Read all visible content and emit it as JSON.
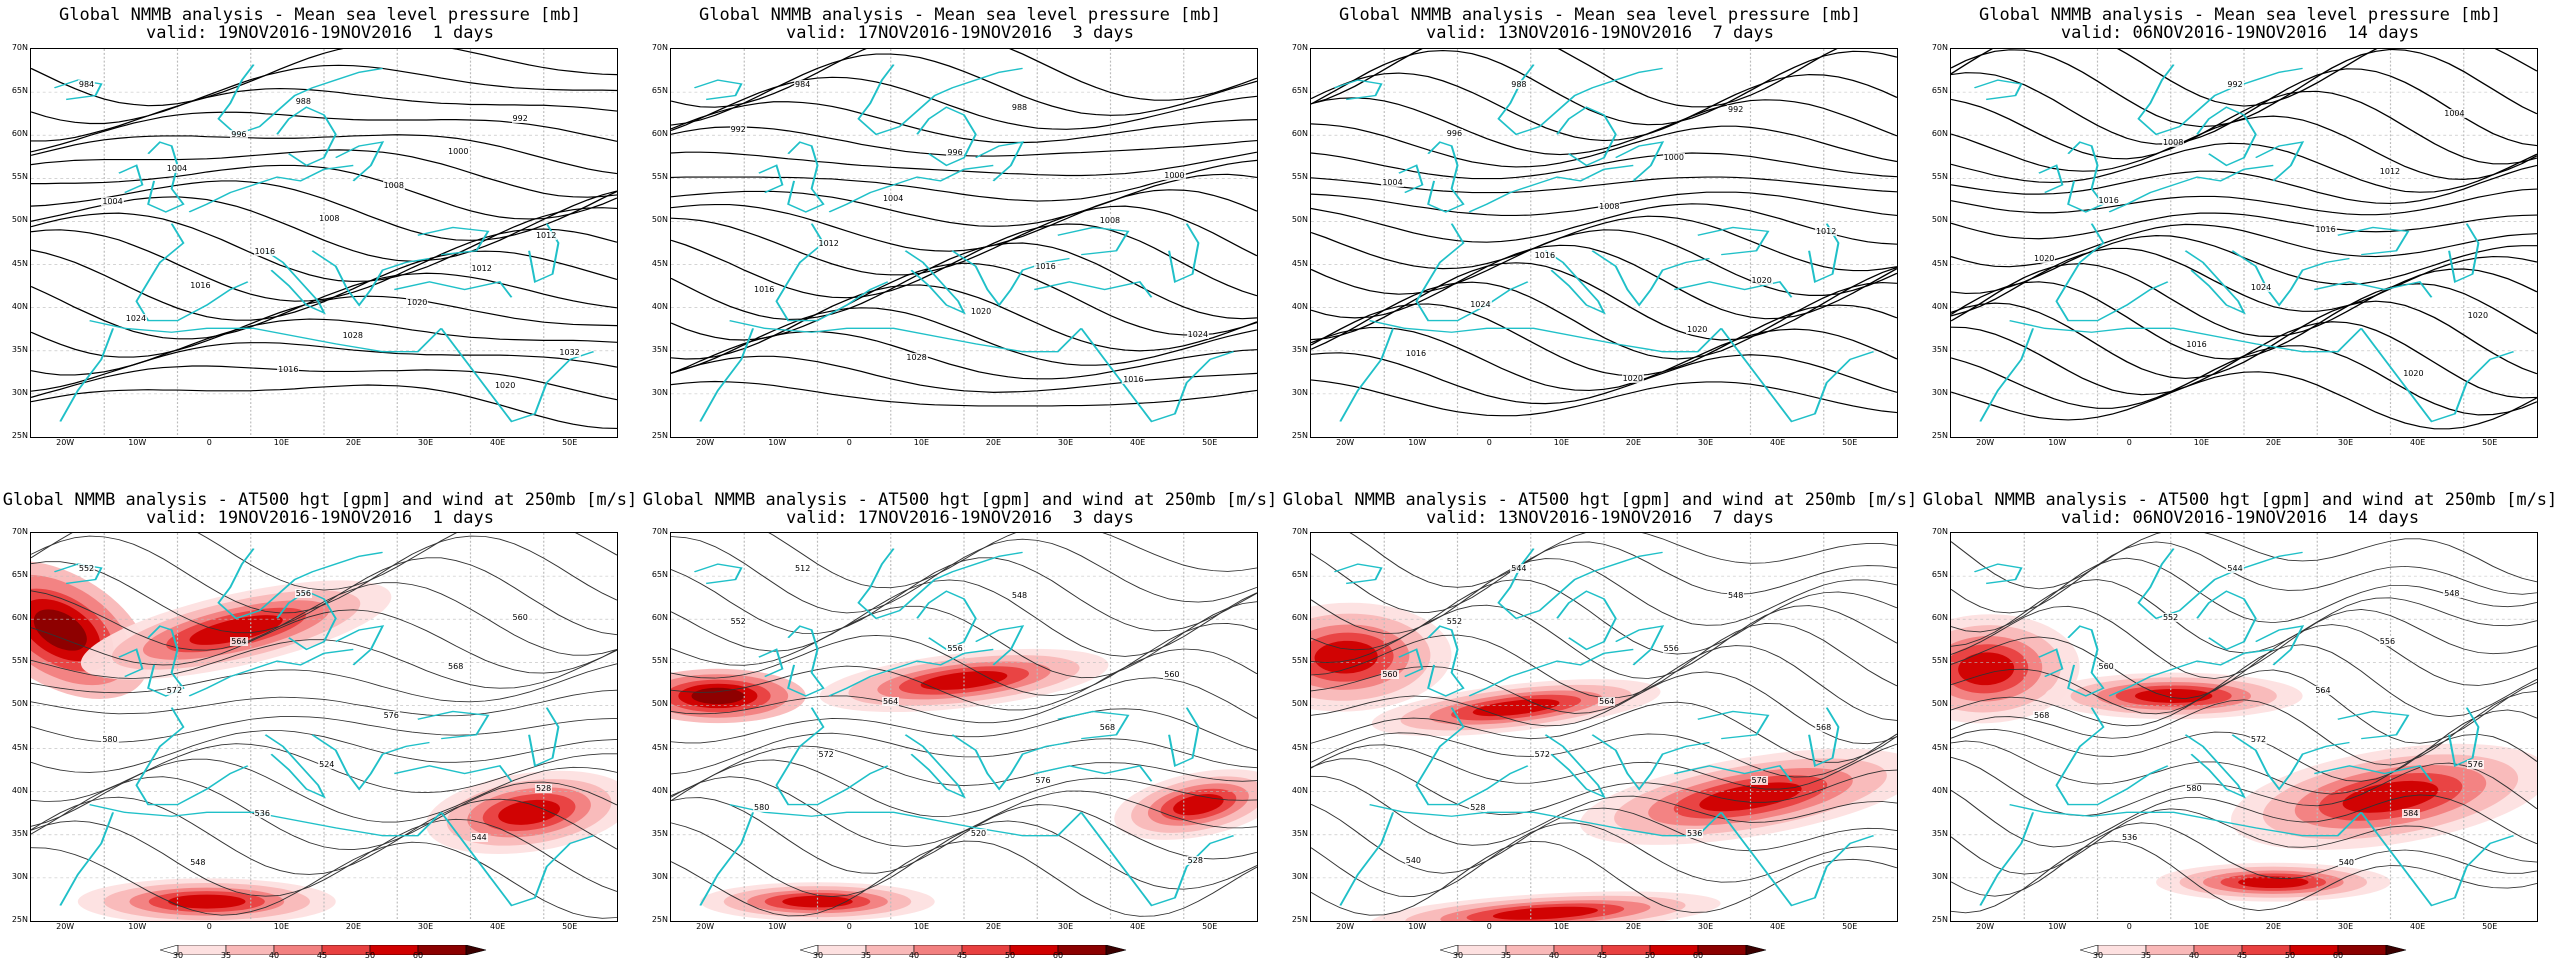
{
  "top_row": [
    {
      "title_line1": "Global NMMB analysis - Mean sea level pressure [mb]",
      "title_line2": "valid: 19NOV2016-19NOV2016  1 days",
      "labels": [
        "984",
        "988",
        "992",
        "996",
        "1000",
        "1004",
        "1008",
        "1004",
        "1008",
        "1012",
        "1016",
        "1012",
        "1016",
        "1020",
        "1024",
        "1028",
        "1032",
        "1016",
        "1020"
      ]
    },
    {
      "title_line1": "Global NMMB analysis - Mean sea level pressure [mb]",
      "title_line2": "valid: 17NOV2016-19NOV2016  3 days",
      "labels": [
        "984",
        "988",
        "992",
        "996",
        "1000",
        "1004",
        "1008",
        "1012",
        "1016",
        "1016",
        "1020",
        "1024",
        "1028",
        "1016"
      ]
    },
    {
      "title_line1": "Global NMMB analysis - Mean sea level pressure [mb]",
      "title_line2": "valid: 13NOV2016-19NOV2016  7 days",
      "labels": [
        "988",
        "992",
        "996",
        "1000",
        "1004",
        "1008",
        "1012",
        "1016",
        "1020",
        "1024",
        "1020",
        "1016",
        "1020"
      ]
    },
    {
      "title_line1": "Global NMMB analysis - Mean sea level pressure [mb]",
      "title_line2": "valid: 06NOV2016-19NOV2016  14 days",
      "labels": [
        "992",
        "1004",
        "1008",
        "1012",
        "1016",
        "1016",
        "1020",
        "1024",
        "1020",
        "1016",
        "1020"
      ]
    }
  ],
  "bottom_row": [
    {
      "title_line1": "Global NMMB analysis - AT500 hgt [gpm] and wind at 250mb [m/s]",
      "title_line2": "valid: 19NOV2016-19NOV2016  1 days",
      "labels": [
        "552",
        "556",
        "560",
        "564",
        "568",
        "572",
        "576",
        "580",
        "524",
        "528",
        "536",
        "544",
        "548"
      ]
    },
    {
      "title_line1": "Global NMMB analysis - AT500 hgt [gpm] and wind at 250mb [m/s]",
      "title_line2": "valid: 17NOV2016-19NOV2016  3 days",
      "labels": [
        "512",
        "548",
        "552",
        "556",
        "560",
        "564",
        "568",
        "572",
        "576",
        "580",
        "520",
        "528"
      ]
    },
    {
      "title_line1": "Global NMMB analysis - AT500 hgt [gpm] and wind at 250mb [m/s]",
      "title_line2": "valid: 13NOV2016-19NOV2016  7 days",
      "labels": [
        "544",
        "548",
        "552",
        "556",
        "560",
        "564",
        "568",
        "572",
        "576",
        "528",
        "536",
        "540"
      ]
    },
    {
      "title_line1": "Global NMMB analysis - AT500 hgt [gpm] and wind at 250mb [m/s]",
      "title_line2": "valid: 06NOV2016-19NOV2016  14 days",
      "labels": [
        "544",
        "548",
        "552",
        "556",
        "560",
        "564",
        "568",
        "572",
        "576",
        "580",
        "584",
        "536",
        "540"
      ]
    }
  ],
  "lat_labels": [
    "70N",
    "65N",
    "60N",
    "55N",
    "50N",
    "45N",
    "40N",
    "35N",
    "30N",
    "25N"
  ],
  "lon_labels": [
    "20W",
    "10W",
    "0",
    "10E",
    "20E",
    "30E",
    "40E",
    "50E"
  ],
  "colorbar": {
    "ticks": [
      "30",
      "35",
      "40",
      "45",
      "50",
      "60"
    ],
    "colors": [
      "#fde0e0",
      "#f9b8b8",
      "#f28080",
      "#e84040",
      "#d00000",
      "#8a0000",
      "#3a0000"
    ]
  },
  "colors": {
    "coast": "#20c0c8",
    "contour": "#000000",
    "grid": "#bbbbbb"
  }
}
